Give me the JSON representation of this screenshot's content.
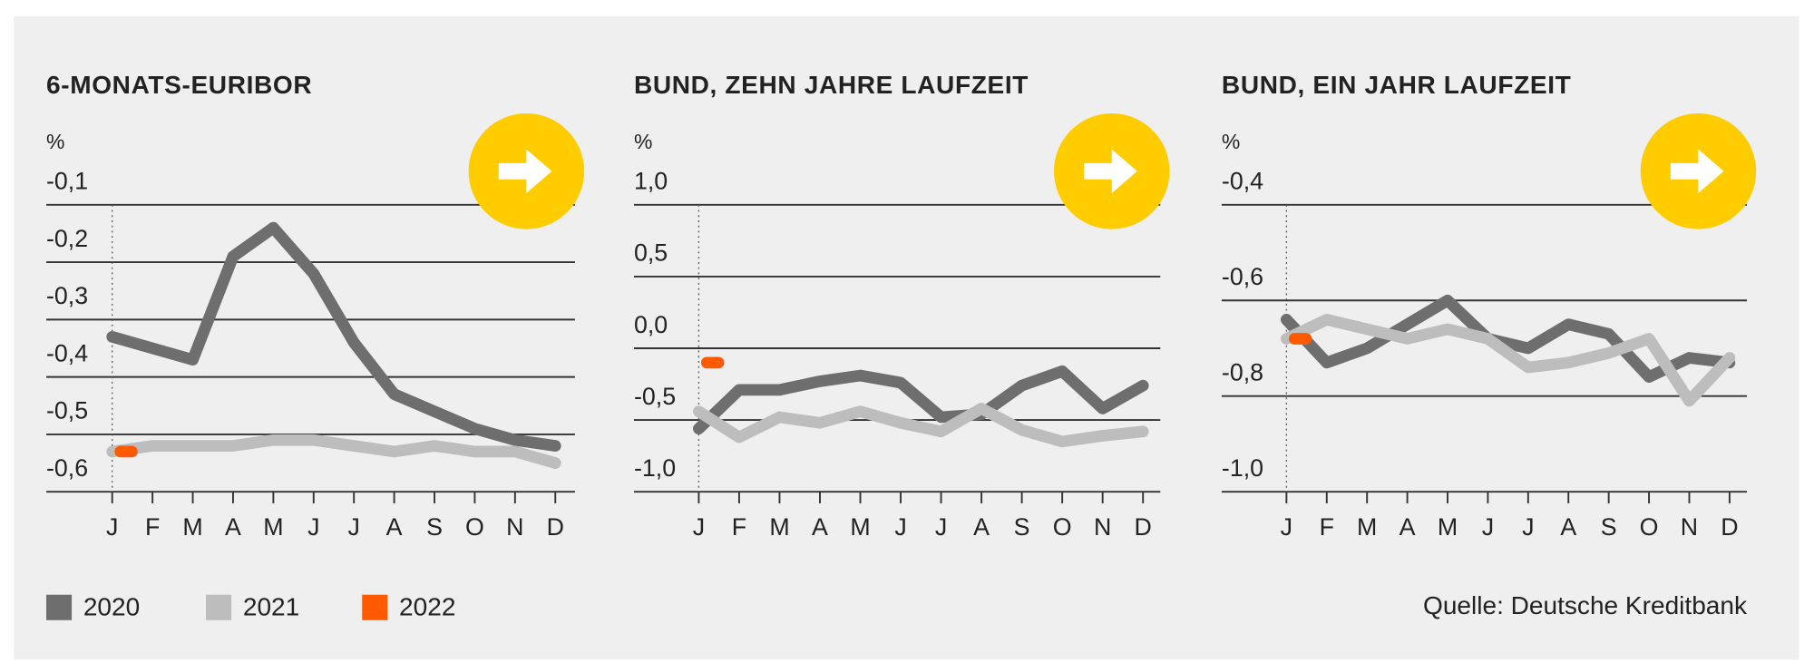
{
  "chart_data": [
    {
      "type": "line",
      "title": "6-MONATS-EURIBOR",
      "unit": "%",
      "categories": [
        "J",
        "F",
        "M",
        "A",
        "M",
        "J",
        "J",
        "A",
        "S",
        "O",
        "N",
        "D"
      ],
      "ylim": [
        -0.6,
        -0.1
      ],
      "yticks": [
        {
          "value": -0.1,
          "label": "-0,1"
        },
        {
          "value": -0.2,
          "label": "-0,2"
        },
        {
          "value": -0.3,
          "label": "-0,3"
        },
        {
          "value": -0.4,
          "label": "-0,4"
        },
        {
          "value": -0.5,
          "label": "-0,5"
        },
        {
          "value": -0.6,
          "label": "-0,6"
        }
      ],
      "grid": true,
      "series": [
        {
          "name": "2020",
          "color": "#6e6e6e",
          "values": [
            -0.33,
            -0.35,
            -0.37,
            -0.19,
            -0.14,
            -0.22,
            -0.34,
            -0.43,
            -0.46,
            -0.49,
            -0.51,
            -0.52
          ]
        },
        {
          "name": "2021",
          "color": "#bdbdbd",
          "values": [
            -0.53,
            -0.52,
            -0.52,
            -0.52,
            -0.51,
            -0.51,
            -0.52,
            -0.53,
            -0.52,
            -0.53,
            -0.53,
            -0.55
          ]
        },
        {
          "name": "2022",
          "color": "#ff5a00",
          "values": [
            -0.53,
            null,
            null,
            null,
            null,
            null,
            null,
            null,
            null,
            null,
            null,
            null
          ]
        }
      ]
    },
    {
      "type": "line",
      "title": "BUND, ZEHN JAHRE LAUFZEIT",
      "unit": "%",
      "categories": [
        "J",
        "F",
        "M",
        "A",
        "M",
        "J",
        "J",
        "A",
        "S",
        "O",
        "N",
        "D"
      ],
      "ylim": [
        -1.0,
        1.0
      ],
      "yticks": [
        {
          "value": 1.0,
          "label": "1,0"
        },
        {
          "value": 0.5,
          "label": "0,5"
        },
        {
          "value": 0.0,
          "label": "0,0"
        },
        {
          "value": -0.5,
          "label": "-0,5"
        },
        {
          "value": -1.0,
          "label": "-1,0"
        }
      ],
      "grid": true,
      "series": [
        {
          "color": "#6e6e6e",
          "values": [
            -0.56,
            -0.29,
            -0.29,
            -0.23,
            -0.19,
            -0.24,
            -0.48,
            -0.46,
            -0.26,
            -0.16,
            -0.42,
            -0.26
          ]
        },
        {
          "color": "#bdbdbd",
          "values": [
            -0.44,
            -0.62,
            -0.48,
            -0.52,
            -0.44,
            -0.52,
            -0.58,
            -0.42,
            -0.57,
            -0.65,
            -0.61,
            -0.58
          ]
        },
        {
          "color": "#ff5a00",
          "values": [
            -0.1,
            null,
            null,
            null,
            null,
            null,
            null,
            null,
            null,
            null,
            null,
            null
          ]
        }
      ]
    },
    {
      "type": "line",
      "title": "BUND, EIN JAHR LAUFZEIT",
      "unit": "%",
      "categories": [
        "J",
        "F",
        "M",
        "A",
        "M",
        "J",
        "J",
        "A",
        "S",
        "O",
        "N",
        "D"
      ],
      "ylim": [
        -1.0,
        -0.4
      ],
      "yticks": [
        {
          "value": -0.4,
          "label": "-0,4"
        },
        {
          "value": -0.6,
          "label": "-0,6"
        },
        {
          "value": -0.8,
          "label": "-0,8"
        },
        {
          "value": -1.0,
          "label": "-1,0"
        }
      ],
      "grid": true,
      "series": [
        {
          "color": "#6e6e6e",
          "values": [
            -0.64,
            -0.73,
            -0.7,
            -0.65,
            -0.6,
            -0.68,
            -0.7,
            -0.65,
            -0.67,
            -0.76,
            -0.72,
            -0.73
          ]
        },
        {
          "color": "#bdbdbd",
          "values": [
            -0.68,
            -0.64,
            -0.66,
            -0.68,
            -0.66,
            -0.68,
            -0.74,
            -0.73,
            -0.71,
            -0.68,
            -0.81,
            -0.72
          ]
        },
        {
          "color": "#ff5a00",
          "values": [
            -0.68,
            null,
            null,
            null,
            null,
            null,
            null,
            null,
            null,
            null,
            null,
            null
          ]
        }
      ]
    }
  ],
  "source": "Quelle: Deutsche Kreditbank"
}
